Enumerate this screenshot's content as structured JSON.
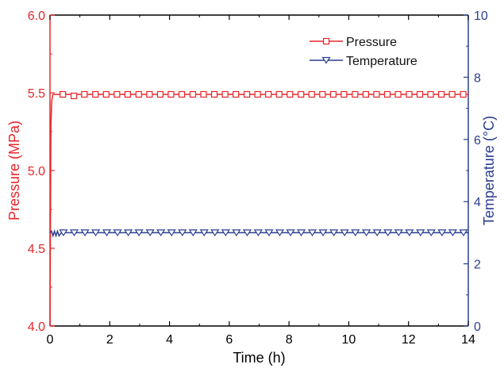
{
  "chart_data": {
    "type": "line",
    "xlabel": "Time (h)",
    "xlim": [
      0,
      14
    ],
    "xticks": [
      "0",
      "2",
      "4",
      "6",
      "8",
      "10",
      "12",
      "14"
    ],
    "y_left": {
      "label": "Pressure (MPa)",
      "lim": [
        4.0,
        6.0
      ],
      "ticks": [
        "4.0",
        "4.5",
        "5.0",
        "5.5",
        "6.0"
      ],
      "color": "#e8262b"
    },
    "y_right": {
      "label": "Temperature (°C)",
      "lim": [
        0,
        10
      ],
      "ticks": [
        "0",
        "2",
        "4",
        "6",
        "8",
        "10"
      ],
      "color": "#2b3e91"
    },
    "legend_position": "top-right",
    "series": [
      {
        "name": "Pressure",
        "axis": "left",
        "color": "#e8262b",
        "marker": "square",
        "line": [
          [
            0,
            4.0
          ],
          [
            0.03,
            5.3
          ],
          [
            0.06,
            5.45
          ],
          [
            0.1,
            5.49
          ],
          [
            14,
            5.49
          ]
        ],
        "markers": [
          [
            0.43,
            5.49
          ],
          [
            0.8,
            5.48
          ],
          [
            1.15,
            5.49
          ],
          [
            1.52,
            5.49
          ],
          [
            1.88,
            5.49
          ],
          [
            2.24,
            5.49
          ],
          [
            2.6,
            5.49
          ],
          [
            2.97,
            5.49
          ],
          [
            3.33,
            5.49
          ],
          [
            3.69,
            5.49
          ],
          [
            4.05,
            5.49
          ],
          [
            4.41,
            5.49
          ],
          [
            4.78,
            5.49
          ],
          [
            5.14,
            5.49
          ],
          [
            5.5,
            5.49
          ],
          [
            5.86,
            5.49
          ],
          [
            6.22,
            5.49
          ],
          [
            6.59,
            5.49
          ],
          [
            6.95,
            5.49
          ],
          [
            7.31,
            5.49
          ],
          [
            7.67,
            5.49
          ],
          [
            8.03,
            5.49
          ],
          [
            8.4,
            5.49
          ],
          [
            8.76,
            5.49
          ],
          [
            9.12,
            5.49
          ],
          [
            9.48,
            5.49
          ],
          [
            9.84,
            5.49
          ],
          [
            10.21,
            5.49
          ],
          [
            10.57,
            5.49
          ],
          [
            10.93,
            5.49
          ],
          [
            11.29,
            5.49
          ],
          [
            11.65,
            5.49
          ],
          [
            12.02,
            5.49
          ],
          [
            12.38,
            5.49
          ],
          [
            12.74,
            5.49
          ],
          [
            13.1,
            5.49
          ],
          [
            13.46,
            5.49
          ],
          [
            13.83,
            5.49
          ]
        ]
      },
      {
        "name": "Temperature",
        "axis": "right",
        "color": "#2b3e91",
        "marker": "triangle-down",
        "line": [
          [
            0,
            3.0
          ],
          [
            0.05,
            3.05
          ],
          [
            0.1,
            2.9
          ],
          [
            0.15,
            3.05
          ],
          [
            0.2,
            2.9
          ],
          [
            0.25,
            3.05
          ],
          [
            0.3,
            2.9
          ],
          [
            0.38,
            3.0
          ],
          [
            14,
            3.0
          ]
        ],
        "markers": [
          [
            0.45,
            3.0
          ],
          [
            0.81,
            3.0
          ],
          [
            1.17,
            3.0
          ],
          [
            1.53,
            3.0
          ],
          [
            1.9,
            3.0
          ],
          [
            2.26,
            3.0
          ],
          [
            2.62,
            3.0
          ],
          [
            2.98,
            3.0
          ],
          [
            3.35,
            3.0
          ],
          [
            3.71,
            3.0
          ],
          [
            4.07,
            3.0
          ],
          [
            4.43,
            3.0
          ],
          [
            4.79,
            3.0
          ],
          [
            5.16,
            3.0
          ],
          [
            5.52,
            3.0
          ],
          [
            5.88,
            3.0
          ],
          [
            6.24,
            3.0
          ],
          [
            6.6,
            3.0
          ],
          [
            6.97,
            3.0
          ],
          [
            7.33,
            3.0
          ],
          [
            7.69,
            3.0
          ],
          [
            8.05,
            3.0
          ],
          [
            8.41,
            3.0
          ],
          [
            8.78,
            3.0
          ],
          [
            9.14,
            3.0
          ],
          [
            9.5,
            3.0
          ],
          [
            9.86,
            3.0
          ],
          [
            10.22,
            3.0
          ],
          [
            10.59,
            3.0
          ],
          [
            10.95,
            3.0
          ],
          [
            11.31,
            3.0
          ],
          [
            11.67,
            3.0
          ],
          [
            12.03,
            3.0
          ],
          [
            12.4,
            3.0
          ],
          [
            12.76,
            3.0
          ],
          [
            13.12,
            3.0
          ],
          [
            13.48,
            3.0
          ],
          [
            13.84,
            3.0
          ]
        ]
      }
    ]
  }
}
